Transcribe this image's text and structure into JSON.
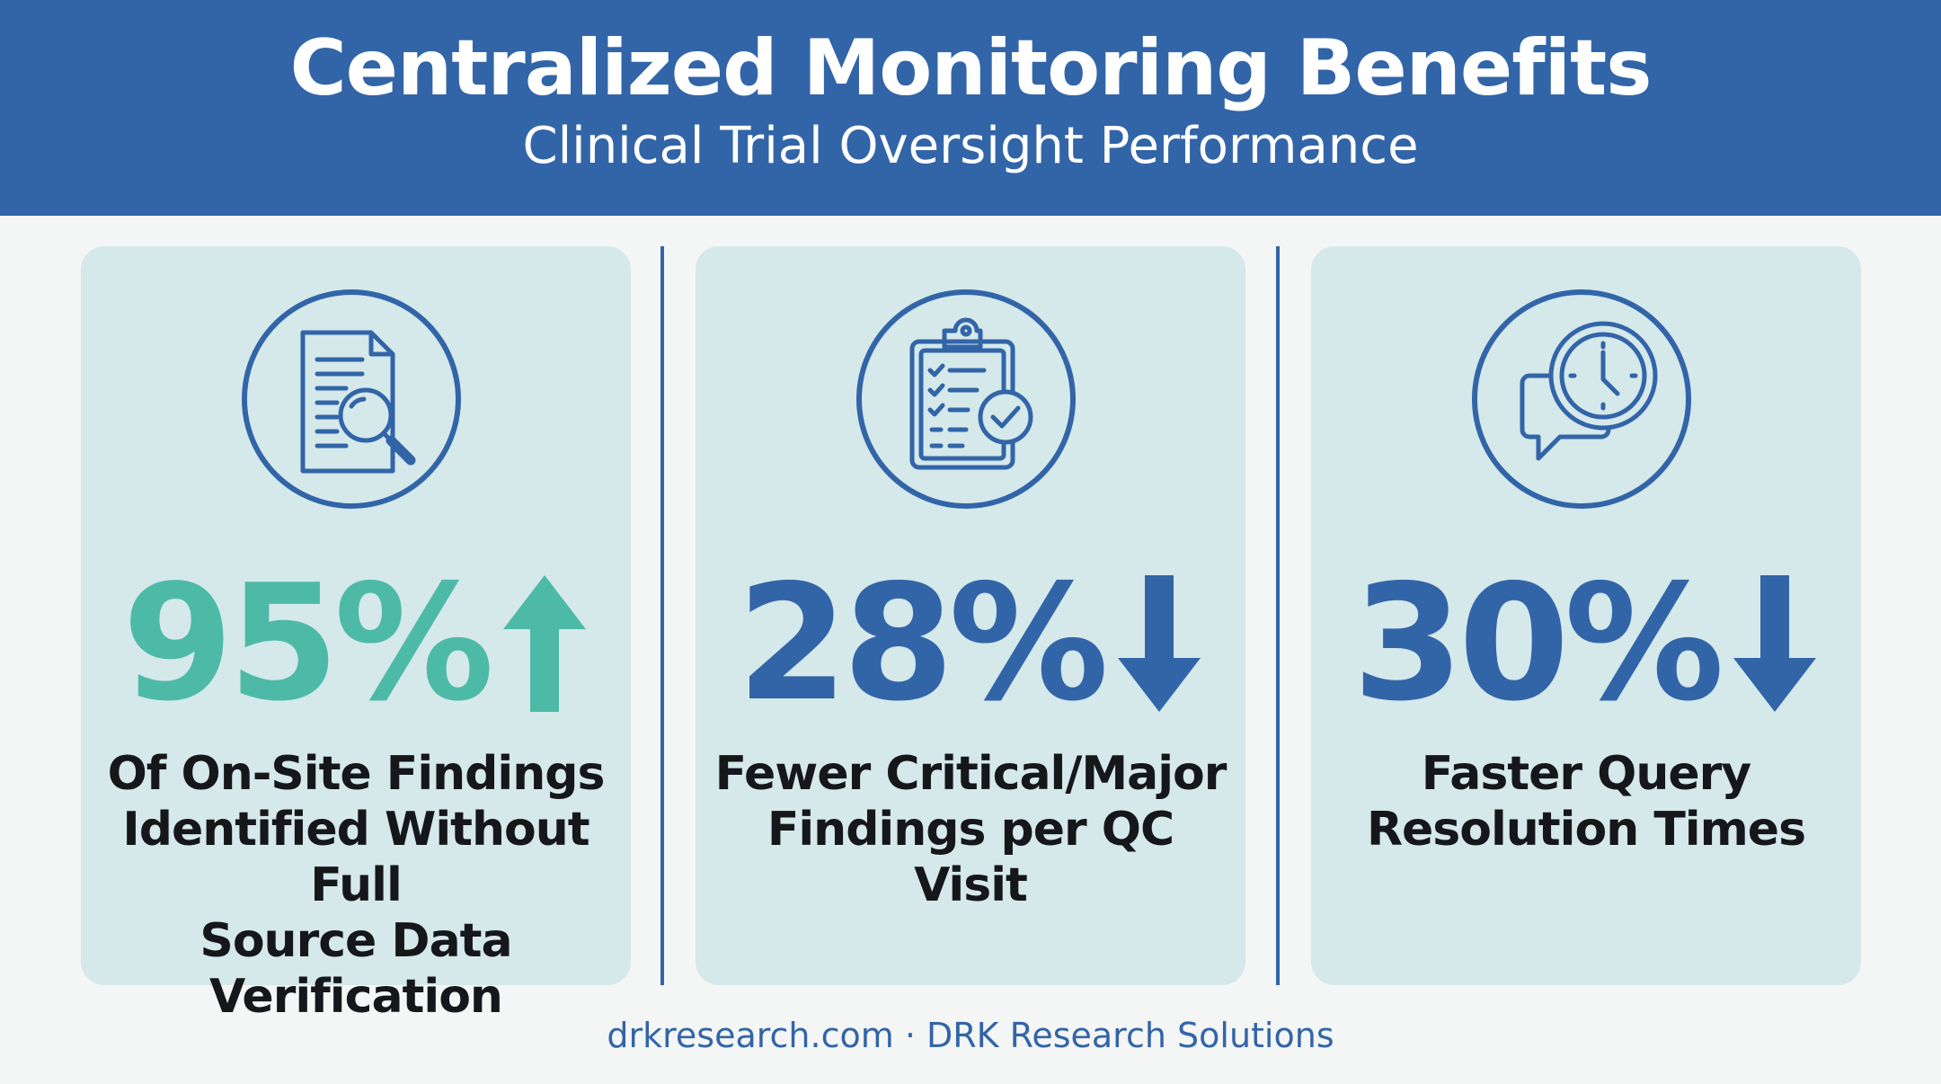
{
  "header": {
    "title": "Centralized Monitoring Benefits",
    "subtitle": "Clinical Trial Oversight Performance"
  },
  "colors": {
    "brand_blue": "#3265a8",
    "teal": "#4dbaa8",
    "card_bg": "#d5e8ea"
  },
  "stats": [
    {
      "icon": "document-search-icon",
      "value": "95%",
      "direction": "up",
      "color": "#4dbaa8",
      "lines": [
        "Of On-Site Findings",
        "Identified Without Full",
        "Source Data Verification"
      ]
    },
    {
      "icon": "clipboard-check-icon",
      "value": "28%",
      "direction": "down",
      "color": "#3265a8",
      "lines": [
        "Fewer Critical/Major",
        "Findings per QC Visit"
      ]
    },
    {
      "icon": "clock-chat-icon",
      "value": "30%",
      "direction": "down",
      "color": "#3265a8",
      "lines": [
        "Faster Query",
        "Resolution Times"
      ]
    }
  ],
  "footer": {
    "text": "drkresearch.com · DRK Research Solutions"
  }
}
